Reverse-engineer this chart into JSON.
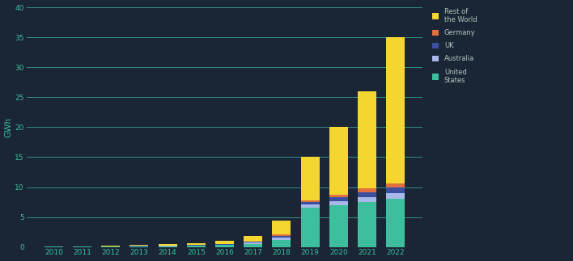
{
  "years": [
    2010,
    2011,
    2012,
    2013,
    2014,
    2015,
    2016,
    2017,
    2018,
    2019,
    2020,
    2021,
    2022
  ],
  "united_states": [
    0.05,
    0.07,
    0.1,
    0.12,
    0.15,
    0.2,
    0.3,
    0.5,
    1.2,
    6.5,
    7.0,
    7.5,
    8.0
  ],
  "australia": [
    0.01,
    0.01,
    0.02,
    0.03,
    0.05,
    0.08,
    0.12,
    0.2,
    0.4,
    0.55,
    0.7,
    0.85,
    1.0
  ],
  "uk": [
    0.01,
    0.01,
    0.02,
    0.02,
    0.03,
    0.05,
    0.08,
    0.15,
    0.3,
    0.45,
    0.6,
    0.8,
    0.9
  ],
  "germany": [
    0.0,
    0.01,
    0.01,
    0.02,
    0.02,
    0.03,
    0.05,
    0.1,
    0.2,
    0.3,
    0.4,
    0.6,
    0.7
  ],
  "rest_of_world": [
    0.03,
    0.05,
    0.1,
    0.13,
    0.2,
    0.29,
    0.55,
    0.95,
    2.3,
    7.2,
    11.3,
    16.25,
    24.4
  ],
  "colors": {
    "united_states": "#3dbf9e",
    "australia": "#a8b8e8",
    "uk": "#3a4fa0",
    "germany": "#e07040",
    "rest_of_world": "#f5d630"
  },
  "legend_labels": {
    "rest_of_world": "Rest of\nthe World",
    "germany": "Germany",
    "uk": "UK",
    "australia": "Australia",
    "united_states": "United\nStates"
  },
  "ylabel": "GWh",
  "ylim": [
    0,
    40
  ],
  "yticks": [
    0,
    5,
    10,
    15,
    20,
    25,
    30,
    35,
    40
  ],
  "background_color": "#1a2535",
  "grid_color": "#3dbf9e",
  "bar_width": 0.65,
  "label_color": "#3dbf9e",
  "text_color": "#b0c8c0"
}
